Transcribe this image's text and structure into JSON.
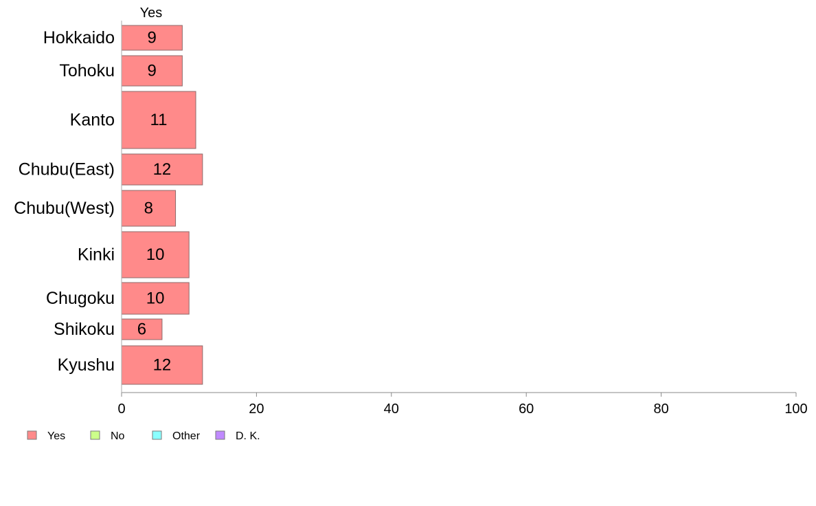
{
  "chart_data": {
    "type": "bar",
    "orientation": "horizontal",
    "stacked": true,
    "column_header": "Yes",
    "categories": [
      "Hokkaido",
      "Tohoku",
      "Kanto",
      "Chubu(East)",
      "Chubu(West)",
      "Kinki",
      "Chugoku",
      "Shikoku",
      "Kyushu"
    ],
    "series": [
      {
        "name": "Yes",
        "color": "#ff8a8a",
        "values": [
          9,
          9,
          11,
          12,
          8,
          10,
          10,
          6,
          12
        ]
      },
      {
        "name": "No",
        "color": "#ccff8a",
        "values": [
          0,
          0,
          0,
          0,
          0,
          0,
          0,
          0,
          0
        ]
      },
      {
        "name": "Other",
        "color": "#8affff",
        "values": [
          0,
          0,
          0,
          0,
          0,
          0,
          0,
          0,
          0
        ]
      },
      {
        "name": "D. K.",
        "color": "#c08aff",
        "values": [
          0,
          0,
          0,
          0,
          0,
          0,
          0,
          0,
          0
        ]
      }
    ],
    "data_labels": [
      "9",
      "9",
      "11",
      "12",
      "8",
      "10",
      "10",
      "6",
      "12"
    ],
    "xlim": [
      0,
      100
    ],
    "xticks": [
      "0",
      "20",
      "40",
      "60",
      "80",
      "100"
    ],
    "xlabel": "",
    "ylabel": "",
    "grid": false,
    "legend_position": "bottom-left"
  }
}
